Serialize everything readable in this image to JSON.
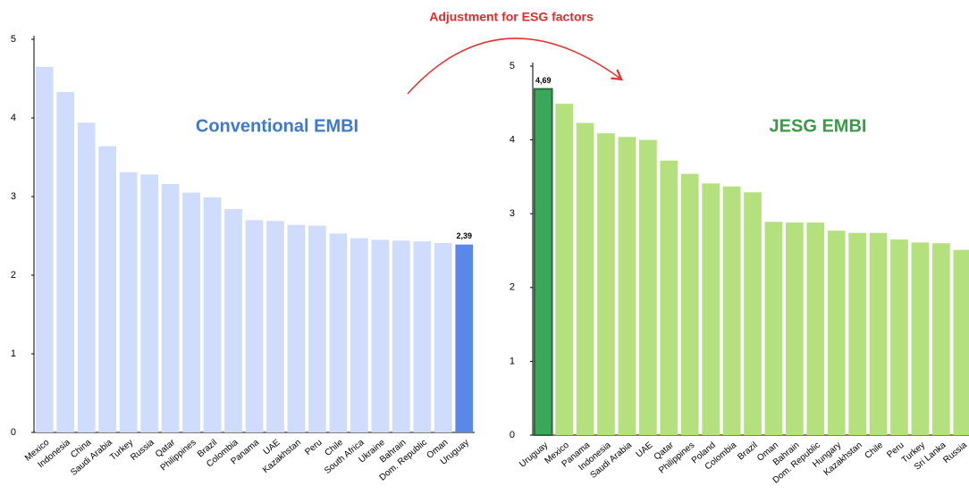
{
  "annotation": "Adjustment for ESG factors",
  "chart_data": [
    {
      "type": "bar",
      "title": "Conventional EMBI",
      "categories": [
        "Mexico",
        "Indonesia",
        "China",
        "Saudi Arabia",
        "Turkey",
        "Russia",
        "Qatar",
        "Philippines",
        "Brazil",
        "Colombia",
        "Panama",
        "UAE",
        "Kazakhstan",
        "Peru",
        "Chile",
        "South Africa",
        "Ukraine",
        "Bahrain",
        "Dom. Republic",
        "Oman",
        "Uruguay"
      ],
      "values": [
        4.65,
        4.33,
        3.94,
        3.64,
        3.31,
        3.28,
        3.16,
        3.05,
        2.99,
        2.84,
        2.7,
        2.69,
        2.64,
        2.63,
        2.53,
        2.47,
        2.45,
        2.44,
        2.43,
        2.41,
        2.39
      ],
      "value_labels": [
        null,
        null,
        null,
        null,
        null,
        null,
        null,
        null,
        null,
        null,
        null,
        null,
        null,
        null,
        null,
        null,
        null,
        null,
        null,
        null,
        "2,39"
      ],
      "colors": [
        "#cfdcfb",
        "#cfdcfb",
        "#cfdcfb",
        "#cfdcfb",
        "#cfdcfb",
        "#cfdcfb",
        "#cfdcfb",
        "#cfdcfb",
        "#cfdcfb",
        "#cfdcfb",
        "#cfdcfb",
        "#cfdcfb",
        "#cfdcfb",
        "#cfdcfb",
        "#cfdcfb",
        "#cfdcfb",
        "#cfdcfb",
        "#cfdcfb",
        "#cfdcfb",
        "#cfdcfb",
        "#5b87e8"
      ],
      "title_color": "#3f79c9",
      "ylim": [
        0,
        5
      ],
      "yticks": [
        0,
        1,
        2,
        3,
        4,
        5
      ]
    },
    {
      "type": "bar",
      "title": "JESG EMBI",
      "categories": [
        "Uruguay",
        "Mexico",
        "Panama",
        "Indonesia",
        "Saudi Arabia",
        "UAE",
        "Qatar",
        "Philippines",
        "Poland",
        "Colombia",
        "Brazil",
        "Oman",
        "Bahrain",
        "Dom. Republic",
        "Hungary",
        "Kazakhstan",
        "Chile",
        "Peru",
        "Turkey",
        "Sri Lanka",
        "Russia"
      ],
      "values": [
        4.69,
        4.49,
        4.23,
        4.09,
        4.04,
        4.0,
        3.72,
        3.54,
        3.41,
        3.37,
        3.29,
        2.89,
        2.88,
        2.88,
        2.77,
        2.74,
        2.74,
        2.65,
        2.61,
        2.6,
        2.51
      ],
      "value_labels": [
        "4,69",
        null,
        null,
        null,
        null,
        null,
        null,
        null,
        null,
        null,
        null,
        null,
        null,
        null,
        null,
        null,
        null,
        null,
        null,
        null,
        null
      ],
      "colors": [
        "#3aa85a",
        "#b4e07e",
        "#b4e07e",
        "#b4e07e",
        "#b4e07e",
        "#b4e07e",
        "#b4e07e",
        "#b4e07e",
        "#b4e07e",
        "#b4e07e",
        "#b4e07e",
        "#b4e07e",
        "#b4e07e",
        "#b4e07e",
        "#b4e07e",
        "#b4e07e",
        "#b4e07e",
        "#b4e07e",
        "#b4e07e",
        "#b4e07e",
        "#b4e07e"
      ],
      "title_color": "#3a9a4a",
      "ylim": [
        0,
        5
      ],
      "yticks": [
        0,
        1,
        2,
        3,
        4,
        5
      ]
    }
  ]
}
